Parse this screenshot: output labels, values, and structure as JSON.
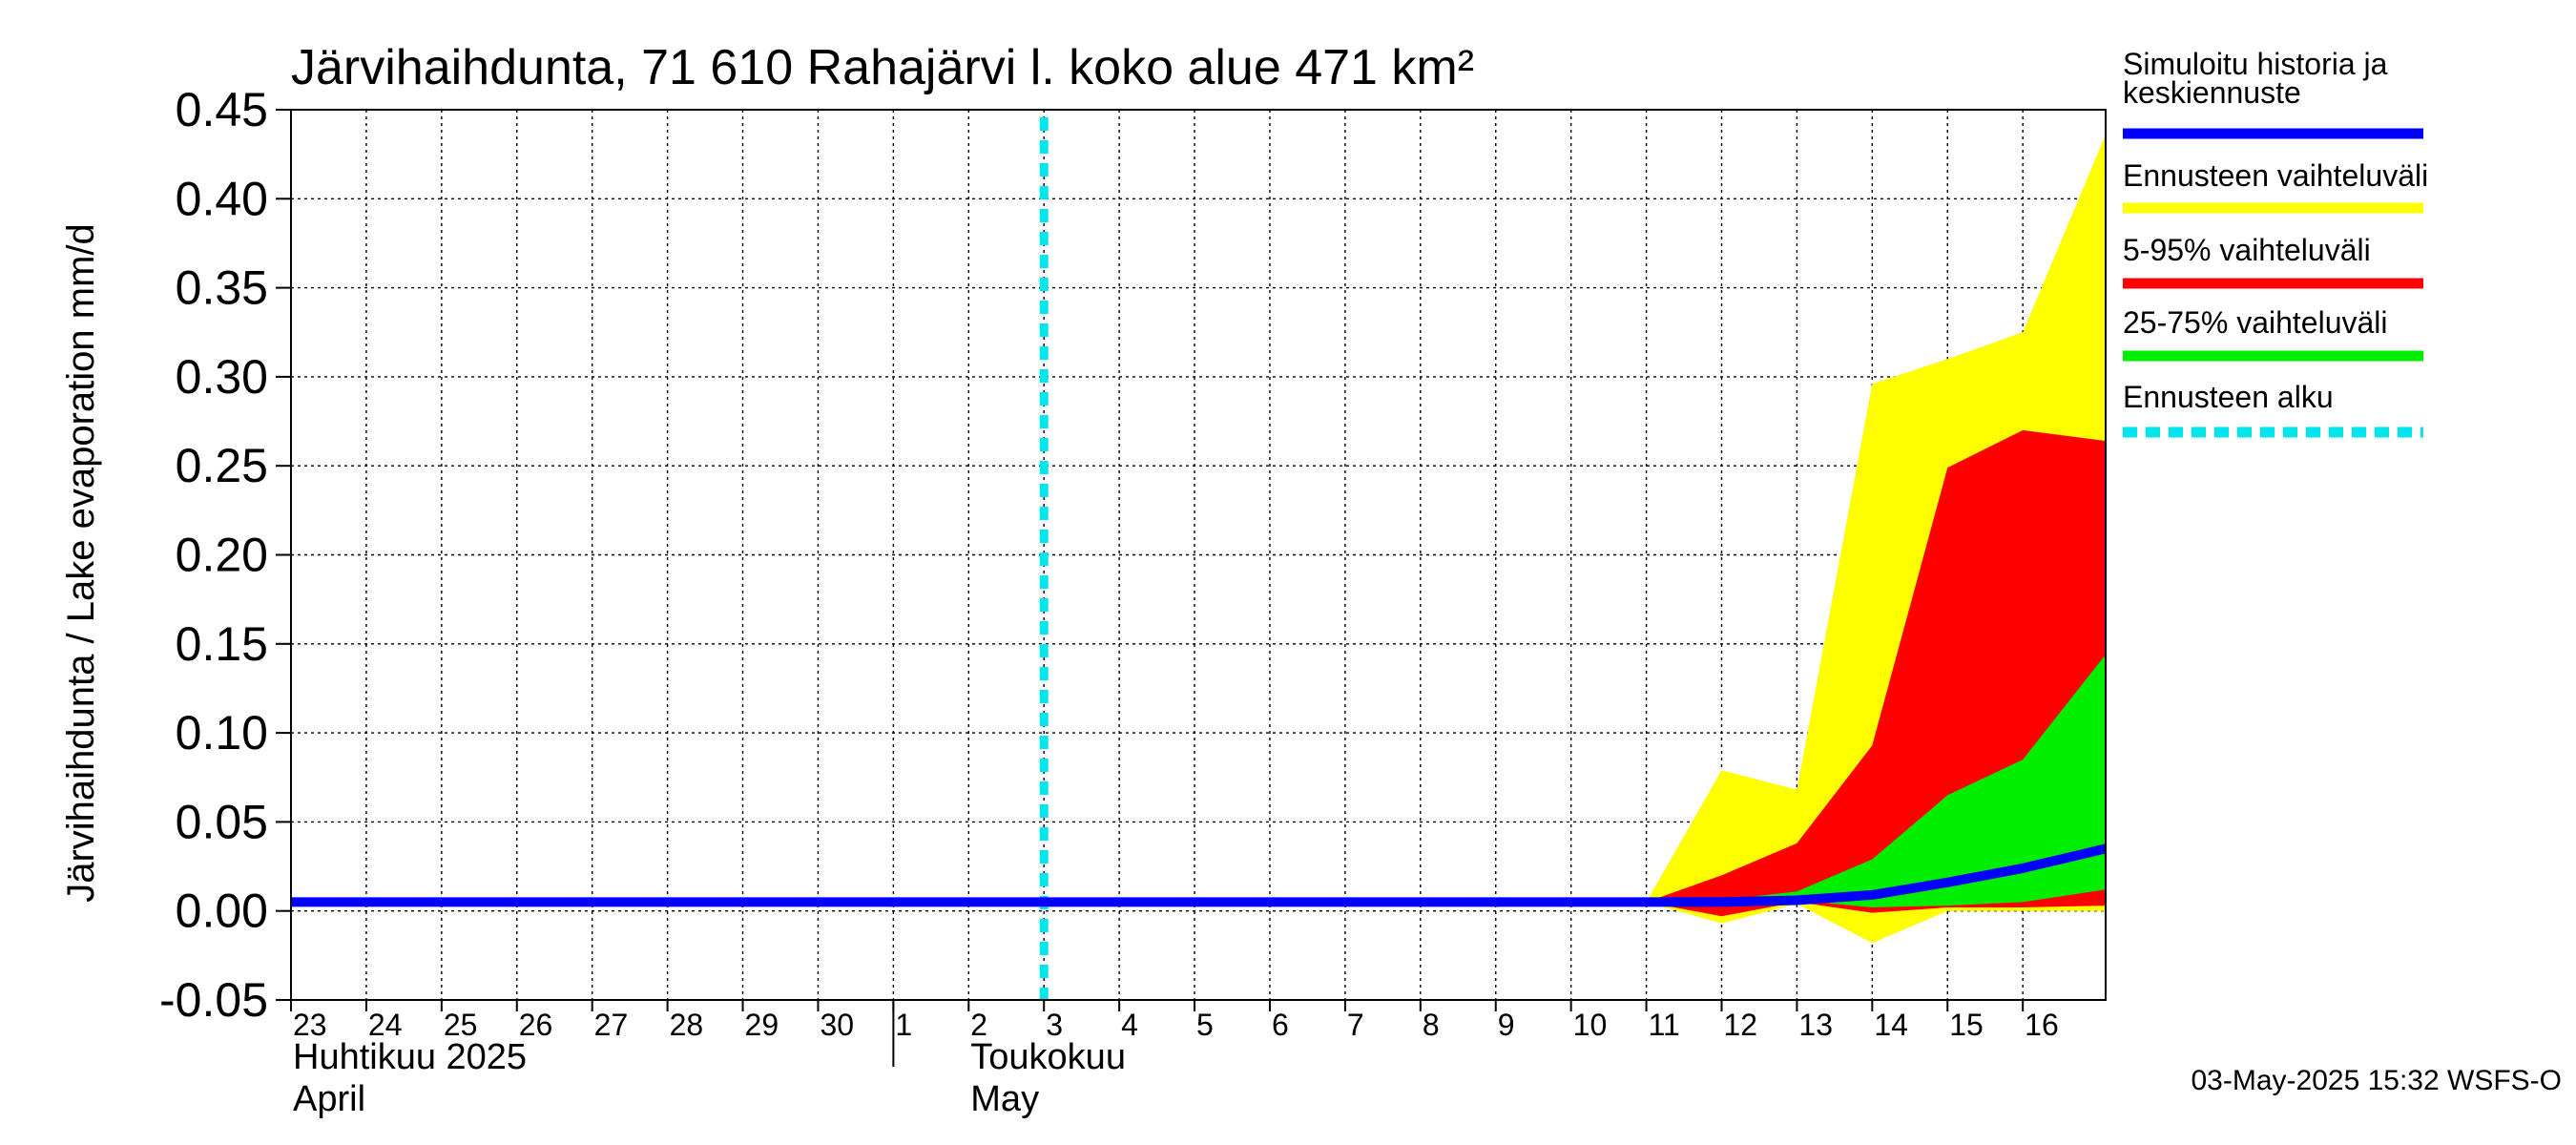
{
  "chart_data": {
    "type": "area",
    "title": "Järvihaihdunta, 71 610 Rahajärvi l. koko alue 471 km²",
    "ylabel": "Järvihaihdunta / Lake evaporation   mm/d",
    "ylim": [
      -0.05,
      0.45
    ],
    "yticks": [
      -0.05,
      0.0,
      0.05,
      0.1,
      0.15,
      0.2,
      0.25,
      0.3,
      0.35,
      0.4,
      0.45
    ],
    "ytick_labels": [
      "-0.05",
      "0.00",
      "0.05",
      "0.10",
      "0.15",
      "0.20",
      "0.25",
      "0.30",
      "0.35",
      "0.40",
      "0.45"
    ],
    "x_start_day": 0,
    "x_end_day": 24.1,
    "xtick_labels": [
      "23",
      "24",
      "25",
      "26",
      "27",
      "28",
      "29",
      "30",
      "1",
      "2",
      "3",
      "4",
      "5",
      "6",
      "7",
      "8",
      "9",
      "10",
      "11",
      "12",
      "13",
      "14",
      "15",
      "16"
    ],
    "months": [
      {
        "name_fi": "Huhtikuu  2025",
        "name_en": "April",
        "start_day": 0
      },
      {
        "name_fi": "Toukokuu",
        "name_en": "May",
        "start_day": 8
      }
    ],
    "forecast_start_day": 10,
    "forecast_x": [
      18,
      19,
      20,
      21,
      22,
      23,
      24.1
    ],
    "band_full": {
      "upper": [
        0.005,
        0.079,
        0.068,
        0.296,
        0.31,
        0.325,
        0.436
      ],
      "lower": [
        0.005,
        -0.007,
        0.004,
        -0.018,
        0.0,
        0.0,
        0.0
      ]
    },
    "band_5_95": {
      "upper": [
        0.005,
        0.02,
        0.038,
        0.093,
        0.249,
        0.27,
        0.264
      ],
      "lower": [
        0.005,
        -0.003,
        0.005,
        -0.001,
        0.002,
        0.002,
        0.003
      ]
    },
    "band_25_75": {
      "upper": [
        0.005,
        0.006,
        0.011,
        0.029,
        0.065,
        0.085,
        0.144
      ],
      "lower": [
        0.005,
        0.003,
        0.006,
        0.002,
        0.003,
        0.005,
        0.012
      ]
    },
    "median": {
      "x": [
        0,
        18,
        19,
        20,
        21,
        22,
        23,
        24.1
      ],
      "values": [
        0.005,
        0.005,
        0.005,
        0.006,
        0.009,
        0.016,
        0.024,
        0.035
      ]
    },
    "legend": [
      {
        "label_lines": [
          "Simuloitu historia ja",
          "keskiennuste"
        ],
        "color": "#0000ff",
        "style": "solid"
      },
      {
        "label_lines": [
          "Ennusteen vaihteluväli"
        ],
        "color": "#ffff00",
        "style": "solid"
      },
      {
        "label_lines": [
          "5-95% vaihteluväli"
        ],
        "color": "#ff0000",
        "style": "solid"
      },
      {
        "label_lines": [
          "25-75% vaihteluväli"
        ],
        "color": "#00ee00",
        "style": "solid"
      },
      {
        "label_lines": [
          "Ennusteen alku"
        ],
        "color": "#00e5ee",
        "style": "dashed"
      }
    ],
    "colors": {
      "full": "#ffff00",
      "p5_95": "#ff0000",
      "p25_75": "#00ee00",
      "median": "#0000ff",
      "forecast_start": "#00e5ee"
    },
    "footer": "03-May-2025 15:32 WSFS-O"
  }
}
